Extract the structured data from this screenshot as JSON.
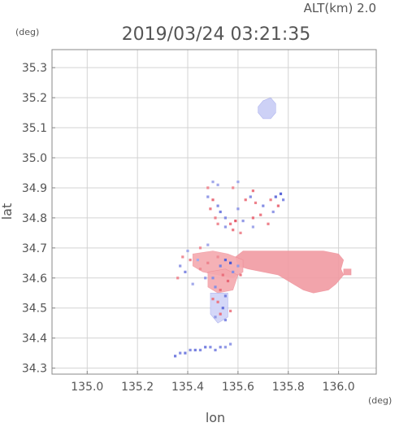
{
  "header": {
    "altitude_label": "ALT(km) 2.0",
    "timestamp": "2019/03/24 03:21:35"
  },
  "chart_data": {
    "type": "heatmap",
    "title": "2019/03/24 03:21:35",
    "subtitle": "ALT(km) 2.0",
    "xlabel": "lon",
    "ylabel": "lat",
    "x_unit": "(deg)",
    "y_unit": "(deg)",
    "xlim": [
      134.86,
      136.15
    ],
    "ylim": [
      34.28,
      35.36
    ],
    "xticks": [
      135.0,
      135.2,
      135.4,
      135.6,
      135.8,
      136.0
    ],
    "xtick_labels": [
      "135.0",
      "135.2",
      "135.4",
      "135.6",
      "135.8",
      "136.0"
    ],
    "yticks": [
      34.3,
      34.4,
      34.5,
      34.6,
      34.7,
      34.8,
      34.9,
      35.0,
      35.1,
      35.2,
      35.3
    ],
    "ytick_labels": [
      "34.3",
      "34.4",
      "34.5",
      "34.6",
      "34.7",
      "34.8",
      "34.9",
      "35.0",
      "35.1",
      "35.2",
      "35.3"
    ],
    "grid": true,
    "colors": {
      "positive": "#f4a8ae",
      "positive_strong": "#e34b5c",
      "negative": "#cfd3f7",
      "negative_strong": "#3a48d0",
      "grid": "#d3d3d3",
      "axis": "#888888"
    },
    "regions": [
      {
        "name": "",
        "polarity": "negative",
        "intensity": 0.35,
        "outline": [
          [
            135.68,
            35.17
          ],
          [
            135.7,
            35.19
          ],
          [
            135.73,
            35.2
          ],
          [
            135.75,
            35.18
          ],
          [
            135.75,
            35.15
          ],
          [
            135.73,
            35.13
          ],
          [
            135.7,
            35.13
          ],
          [
            135.68,
            35.15
          ]
        ]
      },
      {
        "name": "",
        "polarity": "positive",
        "intensity": 0.45,
        "outline": [
          [
            135.62,
            34.69
          ],
          [
            135.7,
            34.69
          ],
          [
            135.78,
            34.69
          ],
          [
            135.84,
            34.69
          ],
          [
            135.88,
            34.69
          ],
          [
            135.94,
            34.69
          ],
          [
            136.0,
            34.68
          ],
          [
            136.02,
            34.66
          ],
          [
            136.01,
            34.63
          ],
          [
            136.02,
            34.61
          ],
          [
            135.99,
            34.58
          ],
          [
            135.96,
            34.56
          ],
          [
            135.9,
            34.55
          ],
          [
            135.86,
            34.56
          ],
          [
            135.82,
            34.58
          ],
          [
            135.76,
            34.61
          ],
          [
            135.7,
            34.62
          ],
          [
            135.64,
            34.63
          ],
          [
            135.6,
            34.64
          ],
          [
            135.59,
            34.67
          ]
        ]
      },
      {
        "name": "",
        "polarity": "positive",
        "intensity": 0.25,
        "outline": [
          [
            135.42,
            34.68
          ],
          [
            135.5,
            34.69
          ],
          [
            135.56,
            34.68
          ],
          [
            135.62,
            34.66
          ],
          [
            135.62,
            34.62
          ],
          [
            135.58,
            34.6
          ],
          [
            135.52,
            34.61
          ],
          [
            135.46,
            34.62
          ],
          [
            135.42,
            34.64
          ]
        ]
      },
      {
        "name": "",
        "polarity": "positive",
        "intensity": 0.45,
        "outline": [
          [
            136.02,
            34.63
          ],
          [
            136.05,
            34.63
          ],
          [
            136.05,
            34.61
          ],
          [
            136.02,
            34.61
          ]
        ]
      },
      {
        "name": "",
        "polarity": "positive",
        "intensity": 0.2,
        "outline": [
          [
            135.48,
            34.62
          ],
          [
            135.55,
            34.63
          ],
          [
            135.6,
            34.61
          ],
          [
            135.58,
            34.56
          ],
          [
            135.52,
            34.55
          ],
          [
            135.48,
            34.57
          ]
        ]
      },
      {
        "name": "",
        "polarity": "negative",
        "intensity": 0.25,
        "outline": [
          [
            135.49,
            34.55
          ],
          [
            135.56,
            34.55
          ],
          [
            135.56,
            34.47
          ],
          [
            135.52,
            34.45
          ],
          [
            135.49,
            34.48
          ]
        ]
      }
    ],
    "points": [
      [
        135.52,
        34.67,
        1,
        0.3
      ],
      [
        135.55,
        34.66,
        -1,
        0.8
      ],
      [
        135.57,
        34.65,
        -1,
        0.9
      ],
      [
        135.53,
        34.64,
        -1,
        0.6
      ],
      [
        135.58,
        34.62,
        -1,
        0.5
      ],
      [
        135.54,
        34.61,
        1,
        0.6
      ],
      [
        135.5,
        34.6,
        -1,
        0.5
      ],
      [
        135.56,
        34.59,
        1,
        0.7
      ],
      [
        135.6,
        34.64,
        -1,
        0.4
      ],
      [
        135.61,
        34.61,
        1,
        0.5
      ],
      [
        135.47,
        34.6,
        -1,
        0.4
      ],
      [
        135.45,
        34.63,
        1,
        0.3
      ],
      [
        135.44,
        34.66,
        -1,
        0.3
      ],
      [
        135.48,
        34.65,
        1,
        0.4
      ],
      [
        135.51,
        34.57,
        -1,
        0.5
      ],
      [
        135.53,
        34.56,
        1,
        0.6
      ],
      [
        135.55,
        34.54,
        -1,
        0.6
      ],
      [
        135.52,
        34.52,
        1,
        0.5
      ],
      [
        135.54,
        34.5,
        -1,
        0.7
      ],
      [
        135.53,
        34.48,
        1,
        0.6
      ],
      [
        135.55,
        34.46,
        -1,
        0.5
      ],
      [
        135.51,
        34.47,
        -1,
        0.4
      ],
      [
        135.57,
        34.49,
        1,
        0.4
      ],
      [
        135.5,
        34.53,
        1,
        0.5
      ],
      [
        135.4,
        34.69,
        -1,
        0.3
      ],
      [
        135.41,
        34.66,
        1,
        0.4
      ],
      [
        135.37,
        34.64,
        -1,
        0.4
      ],
      [
        135.38,
        34.67,
        1,
        0.3
      ],
      [
        135.39,
        34.62,
        -1,
        0.5
      ],
      [
        135.36,
        34.6,
        1,
        0.3
      ],
      [
        135.42,
        34.58,
        -1,
        0.3
      ],
      [
        135.45,
        34.7,
        1,
        0.3
      ],
      [
        135.48,
        34.71,
        -1,
        0.3
      ],
      [
        135.48,
        34.87,
        -1,
        0.4
      ],
      [
        135.5,
        34.86,
        1,
        0.6
      ],
      [
        135.52,
        34.84,
        -1,
        0.5
      ],
      [
        135.49,
        34.83,
        1,
        0.5
      ],
      [
        135.53,
        34.82,
        -1,
        0.6
      ],
      [
        135.51,
        34.8,
        1,
        0.4
      ],
      [
        135.55,
        34.8,
        -1,
        0.5
      ],
      [
        135.57,
        34.78,
        1,
        0.5
      ],
      [
        135.59,
        34.79,
        1,
        0.8
      ],
      [
        135.6,
        34.83,
        -1,
        0.4
      ],
      [
        135.63,
        34.86,
        1,
        0.5
      ],
      [
        135.65,
        34.87,
        -1,
        0.5
      ],
      [
        135.67,
        34.85,
        1,
        0.4
      ],
      [
        135.7,
        34.84,
        -1,
        0.5
      ],
      [
        135.73,
        34.86,
        1,
        0.4
      ],
      [
        135.75,
        34.87,
        -1,
        0.7
      ],
      [
        135.76,
        34.84,
        1,
        0.6
      ],
      [
        135.74,
        34.82,
        -1,
        0.4
      ],
      [
        135.69,
        34.81,
        1,
        0.5
      ],
      [
        135.66,
        34.8,
        1,
        0.6
      ],
      [
        135.62,
        34.79,
        -1,
        0.4
      ],
      [
        135.58,
        34.76,
        1,
        0.5
      ],
      [
        135.55,
        34.77,
        -1,
        0.4
      ],
      [
        135.52,
        34.78,
        1,
        0.3
      ],
      [
        135.6,
        34.92,
        -1,
        0.3
      ],
      [
        135.58,
        34.9,
        1,
        0.3
      ],
      [
        135.5,
        34.92,
        -1,
        0.3
      ],
      [
        135.48,
        34.9,
        1,
        0.3
      ],
      [
        135.52,
        34.91,
        -1,
        0.3
      ],
      [
        135.66,
        34.89,
        1,
        0.5
      ],
      [
        135.78,
        34.86,
        -1,
        0.5
      ],
      [
        135.77,
        34.88,
        -1,
        0.8
      ],
      [
        135.72,
        34.78,
        1,
        0.4
      ],
      [
        135.66,
        34.77,
        -1,
        0.3
      ],
      [
        135.61,
        34.75,
        1,
        0.3
      ],
      [
        135.35,
        34.34,
        -1,
        0.6
      ],
      [
        135.37,
        34.35,
        -1,
        0.5
      ],
      [
        135.39,
        34.35,
        -1,
        0.6
      ],
      [
        135.41,
        34.36,
        -1,
        0.5
      ],
      [
        135.43,
        34.36,
        -1,
        0.6
      ],
      [
        135.45,
        34.36,
        -1,
        0.5
      ],
      [
        135.47,
        34.37,
        -1,
        0.6
      ],
      [
        135.49,
        34.37,
        -1,
        0.5
      ],
      [
        135.51,
        34.36,
        -1,
        0.5
      ],
      [
        135.53,
        34.37,
        -1,
        0.5
      ],
      [
        135.55,
        34.37,
        -1,
        0.4
      ],
      [
        135.57,
        34.38,
        -1,
        0.4
      ]
    ]
  }
}
